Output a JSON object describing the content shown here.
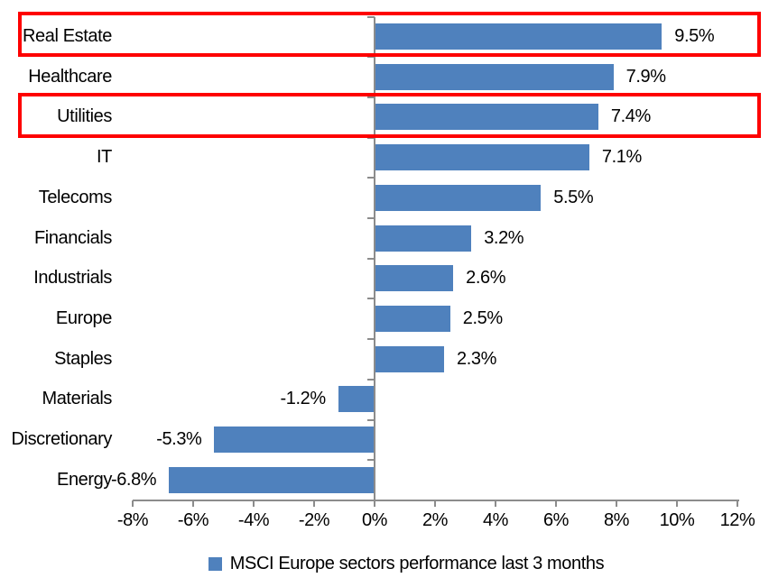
{
  "chart_data": {
    "type": "bar",
    "orientation": "horizontal",
    "title": "",
    "categories": [
      "Real Estate",
      "Healthcare",
      "Utilities",
      "IT",
      "Telecoms",
      "Financials",
      "Industrials",
      "Europe",
      "Staples",
      "Materials",
      "Discretionary",
      "Energy"
    ],
    "values": [
      9.5,
      7.9,
      7.4,
      7.1,
      5.5,
      3.2,
      2.6,
      2.5,
      2.3,
      -1.2,
      -5.3,
      -6.8
    ],
    "value_labels": [
      "9.5%",
      "7.9%",
      "7.4%",
      "7.1%",
      "5.5%",
      "3.2%",
      "2.6%",
      "2.5%",
      "2.3%",
      "-1.2%",
      "-5.3%",
      "-6.8%"
    ],
    "x_ticks": [
      -8,
      -6,
      -4,
      -2,
      0,
      2,
      4,
      6,
      8,
      10,
      12
    ],
    "x_tick_labels": [
      "-8%",
      "-6%",
      "-4%",
      "-2%",
      "0%",
      "2%",
      "4%",
      "6%",
      "8%",
      "10%",
      "12%"
    ],
    "xlim": [
      -8,
      12
    ],
    "grid": false,
    "highlighted_categories": [
      "Real Estate",
      "Utilities"
    ],
    "legend": {
      "label": "MSCI Europe sectors performance last 3 months",
      "position": "bottom",
      "marker": "square-icon"
    },
    "colors": {
      "bar": "#4F81BD",
      "highlight_box": "#FE0000",
      "axis": "#8C8C8C",
      "text": "#000000",
      "background": "#FFFFFF"
    }
  }
}
